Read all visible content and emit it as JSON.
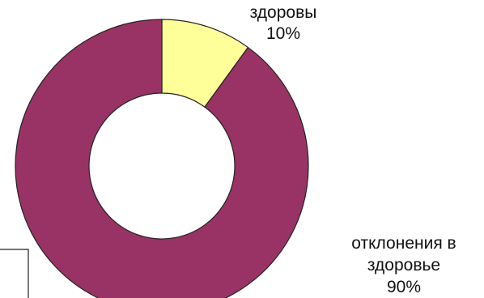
{
  "chart_data": {
    "type": "pie",
    "subtype": "doughnut",
    "title": "",
    "categories": [
      "здоровы",
      "отклонения в здоровье"
    ],
    "values": [
      10,
      90
    ],
    "value_unit": "%",
    "colors": [
      "#ffff99",
      "#993366"
    ],
    "labels": [
      {
        "lines": [
          "здоровы",
          "10%"
        ]
      },
      {
        "lines": [
          "отклонения в",
          "здоровье",
          "90%"
        ]
      }
    ],
    "legend": "none"
  }
}
